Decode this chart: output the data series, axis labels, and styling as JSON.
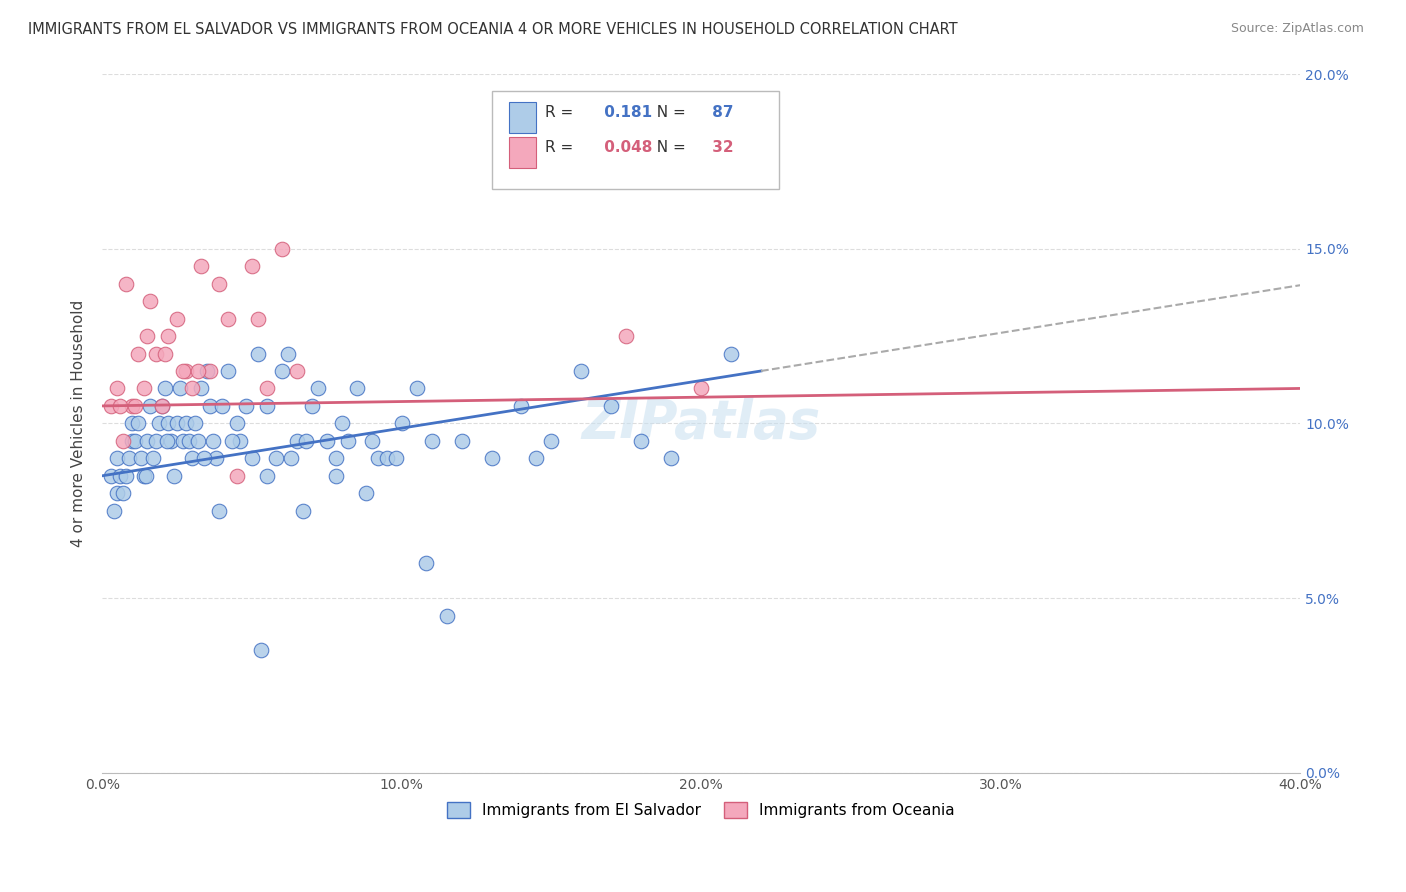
{
  "title": "IMMIGRANTS FROM EL SALVADOR VS IMMIGRANTS FROM OCEANIA 4 OR MORE VEHICLES IN HOUSEHOLD CORRELATION CHART",
  "source": "Source: ZipAtlas.com",
  "legend_label1": "Immigrants from El Salvador",
  "legend_label2": "Immigrants from Oceania",
  "r1": "0.181",
  "n1": "87",
  "r2": "0.048",
  "n2": "32",
  "color_blue": "#aecce8",
  "color_pink": "#f4a8bc",
  "color_blue_line": "#4472c4",
  "color_pink_line": "#d45f7a",
  "color_dashed_line": "#aaaaaa",
  "blue_scatter_x": [
    0.3,
    0.4,
    0.5,
    0.5,
    0.6,
    0.7,
    0.8,
    0.9,
    1.0,
    1.0,
    1.1,
    1.2,
    1.3,
    1.4,
    1.5,
    1.6,
    1.7,
    1.8,
    1.9,
    2.0,
    2.1,
    2.2,
    2.3,
    2.4,
    2.5,
    2.6,
    2.7,
    2.8,
    2.9,
    3.0,
    3.1,
    3.2,
    3.3,
    3.5,
    3.6,
    3.7,
    3.8,
    4.0,
    4.2,
    4.5,
    4.8,
    5.0,
    5.2,
    5.5,
    5.8,
    6.0,
    6.2,
    6.5,
    6.8,
    7.0,
    7.2,
    7.5,
    7.8,
    8.0,
    8.2,
    8.5,
    9.0,
    9.2,
    9.5,
    10.0,
    10.5,
    11.0,
    11.5,
    12.0,
    13.0,
    14.0,
    14.5,
    15.0,
    17.0,
    18.0,
    19.0,
    21.0,
    8.8,
    4.6,
    5.5,
    3.4,
    2.15,
    1.45,
    6.7,
    9.8,
    16.0,
    5.3,
    3.9,
    4.35,
    6.3,
    7.8,
    10.8
  ],
  "blue_scatter_y": [
    8.5,
    7.5,
    9.0,
    8.0,
    8.5,
    8.0,
    8.5,
    9.0,
    9.5,
    10.0,
    9.5,
    10.0,
    9.0,
    8.5,
    9.5,
    10.5,
    9.0,
    9.5,
    10.0,
    10.5,
    11.0,
    10.0,
    9.5,
    8.5,
    10.0,
    11.0,
    9.5,
    10.0,
    9.5,
    9.0,
    10.0,
    9.5,
    11.0,
    11.5,
    10.5,
    9.5,
    9.0,
    10.5,
    11.5,
    10.0,
    10.5,
    9.0,
    12.0,
    10.5,
    9.0,
    11.5,
    12.0,
    9.5,
    9.5,
    10.5,
    11.0,
    9.5,
    9.0,
    10.0,
    9.5,
    11.0,
    9.5,
    9.0,
    9.0,
    10.0,
    11.0,
    9.5,
    4.5,
    9.5,
    9.0,
    10.5,
    9.0,
    9.5,
    10.5,
    9.5,
    9.0,
    12.0,
    8.0,
    9.5,
    8.5,
    9.0,
    9.5,
    8.5,
    7.5,
    9.0,
    11.5,
    3.5,
    7.5,
    9.5,
    9.0,
    8.5,
    6.0
  ],
  "pink_scatter_x": [
    0.3,
    0.5,
    0.7,
    0.8,
    1.0,
    1.2,
    1.4,
    1.6,
    1.8,
    2.0,
    2.2,
    2.5,
    2.8,
    3.0,
    3.3,
    3.6,
    3.9,
    4.2,
    5.0,
    5.5,
    6.0,
    1.1,
    1.5,
    2.1,
    2.7,
    3.2,
    4.5,
    5.2,
    6.5,
    17.5,
    20.0,
    0.6
  ],
  "pink_scatter_y": [
    10.5,
    11.0,
    9.5,
    14.0,
    10.5,
    12.0,
    11.0,
    13.5,
    12.0,
    10.5,
    12.5,
    13.0,
    11.5,
    11.0,
    14.5,
    11.5,
    14.0,
    13.0,
    14.5,
    11.0,
    15.0,
    10.5,
    12.5,
    12.0,
    11.5,
    11.5,
    8.5,
    13.0,
    11.5,
    12.5,
    11.0,
    10.5
  ],
  "watermark": "ZIPatlas",
  "xmin": 0.0,
  "xmax": 40.0,
  "ymin": 0.0,
  "ymax": 20.0,
  "yticks": [
    0.0,
    5.0,
    10.0,
    15.0,
    20.0
  ],
  "xticks": [
    0.0,
    10.0,
    20.0,
    30.0,
    40.0
  ],
  "blue_line_x0": 0.0,
  "blue_line_y0": 8.5,
  "blue_line_x1": 22.0,
  "blue_line_y1": 11.5,
  "blue_dash_x0": 22.0,
  "blue_dash_x1": 40.0,
  "pink_line_x0": 0.0,
  "pink_line_y0": 10.5,
  "pink_line_x1": 40.0,
  "pink_line_y1": 11.0
}
